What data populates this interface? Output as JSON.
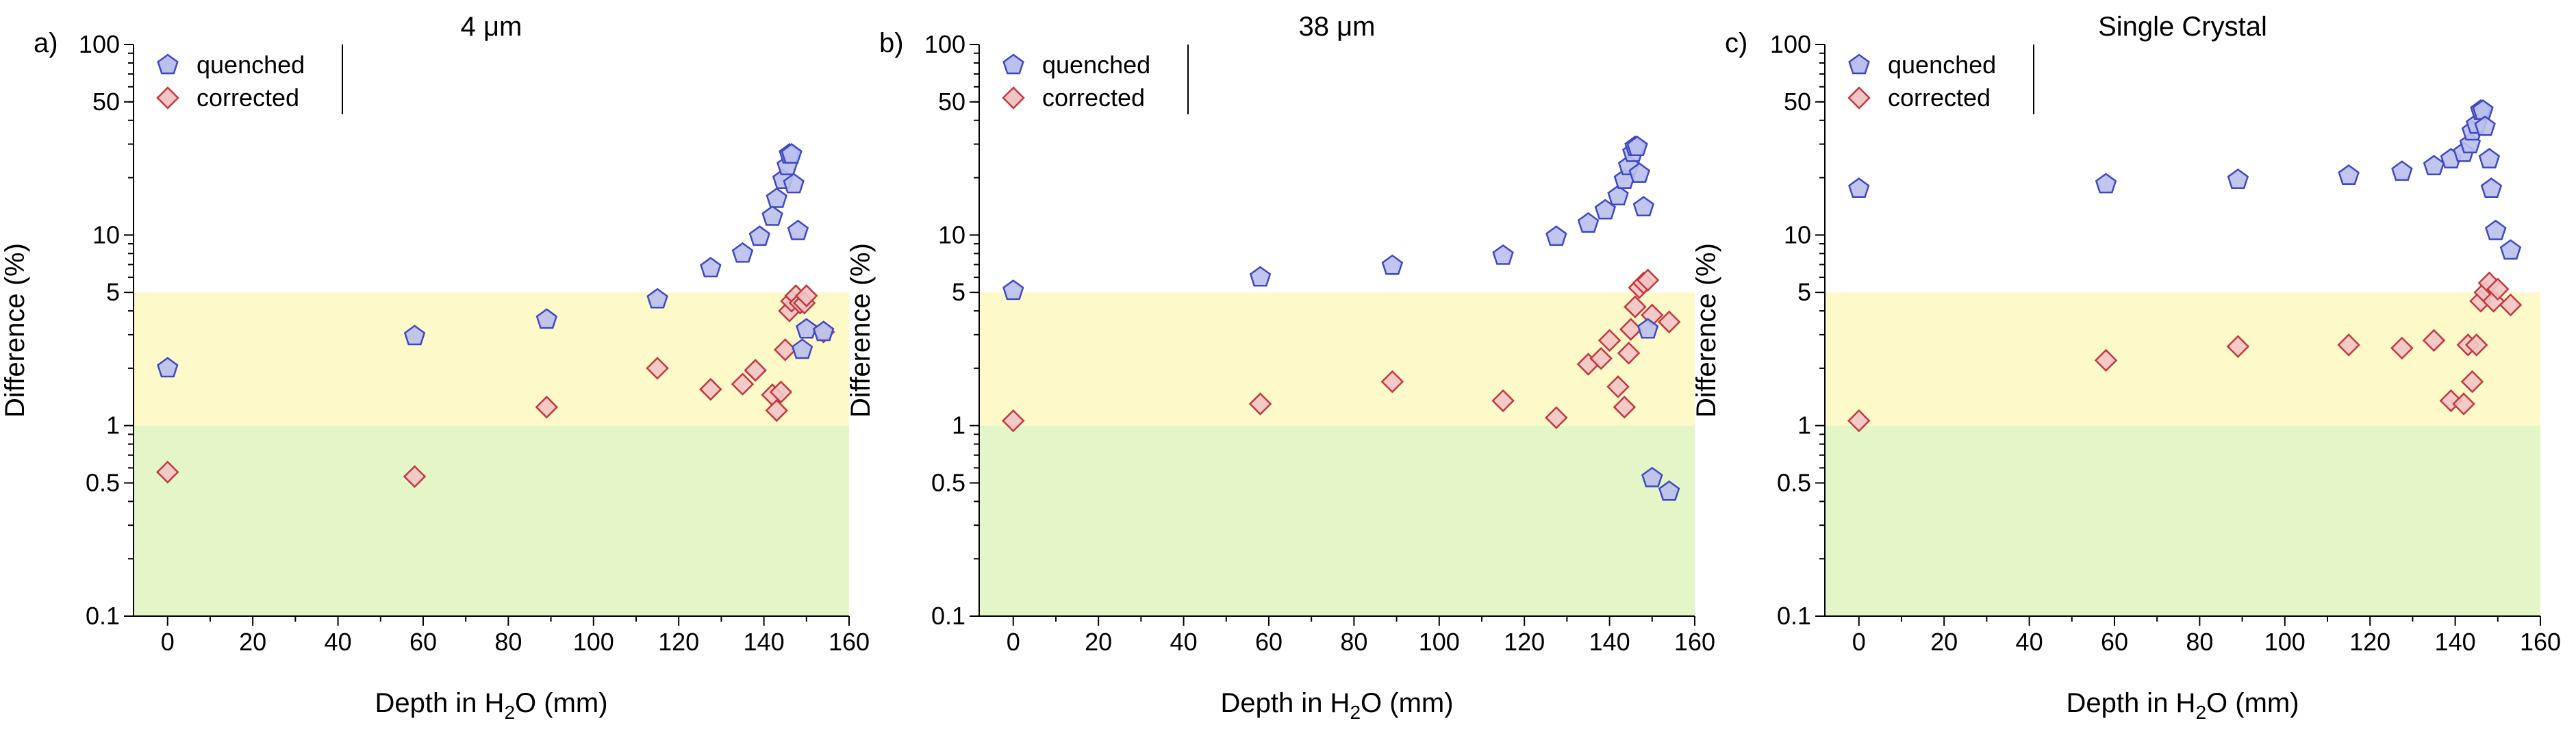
{
  "figure": {
    "panel_labels": [
      "a)",
      "b)",
      "c)"
    ],
    "titles": [
      "4 μm",
      "38 μm",
      "Single Crystal"
    ]
  },
  "colors": {
    "quenched_fill": "#b9c0ec",
    "quenched_stroke": "#3f48c2",
    "corrected_fill": "#f2c4c4",
    "corrected_stroke": "#c0393f",
    "band_yellow": "#fdf9c9",
    "band_green": "#e4f6c7"
  },
  "chart_data": [
    {
      "type": "scatter",
      "panel": "a)",
      "title": "4 μm",
      "xlabel": "Depth in H₂O (mm)",
      "ylabel": "Difference (%)",
      "xlim": [
        -8,
        160
      ],
      "ylim": [
        0.1,
        100
      ],
      "yscale": "log",
      "xticks": [
        "0",
        "20",
        "40",
        "60",
        "80",
        "100",
        "120",
        "140",
        "160"
      ],
      "yticks": [
        "0.1",
        "0.5",
        "1",
        "5",
        "10",
        "50",
        "100"
      ],
      "bands": [
        {
          "from": 0.1,
          "to": 1,
          "color": "green"
        },
        {
          "from": 1,
          "to": 5,
          "color": "yellow"
        }
      ],
      "legend": {
        "position": "top-left",
        "entries": [
          "quenched",
          "corrected"
        ]
      },
      "series": [
        {
          "name": "quenched",
          "marker": "pentagon",
          "x": [
            0,
            58,
            89,
            115,
            127.5,
            135,
            139,
            142,
            143,
            144.5,
            145.5,
            146,
            146.5,
            147,
            148,
            149,
            150,
            154
          ],
          "y": [
            2.0,
            2.95,
            3.6,
            4.6,
            6.7,
            8.0,
            9.8,
            12.5,
            15.5,
            19.5,
            23,
            26.5,
            26.5,
            18.5,
            10.5,
            2.5,
            3.2,
            3.1
          ]
        },
        {
          "name": "corrected",
          "marker": "diamond",
          "x": [
            0,
            58,
            89,
            115,
            127.5,
            135,
            138,
            142,
            143,
            144,
            145,
            146,
            146.5,
            147.5,
            148.5,
            149.5,
            150,
            154
          ],
          "y": [
            0.57,
            0.54,
            1.25,
            2.0,
            1.55,
            1.65,
            1.95,
            1.45,
            1.2,
            1.5,
            2.5,
            4.0,
            4.5,
            4.8,
            4.4,
            4.4,
            4.8,
            3.1
          ]
        }
      ]
    },
    {
      "type": "scatter",
      "panel": "b)",
      "title": "38 μm",
      "xlabel": "Depth in H₂O (mm)",
      "ylabel": "Difference (%)",
      "xlim": [
        -8,
        160
      ],
      "ylim": [
        0.1,
        100
      ],
      "yscale": "log",
      "xticks": [
        "0",
        "20",
        "40",
        "60",
        "80",
        "100",
        "120",
        "140",
        "160"
      ],
      "yticks": [
        "0.1",
        "0.5",
        "1",
        "5",
        "10",
        "50",
        "100"
      ],
      "bands": [
        {
          "from": 0.1,
          "to": 1,
          "color": "green"
        },
        {
          "from": 1,
          "to": 5,
          "color": "yellow"
        }
      ],
      "legend": {
        "position": "top-left",
        "entries": [
          "quenched",
          "corrected"
        ]
      },
      "series": [
        {
          "name": "quenched",
          "marker": "pentagon",
          "x": [
            0,
            58,
            89,
            115,
            127.5,
            135,
            139,
            142,
            143.5,
            144.5,
            145.5,
            146,
            146.5,
            147,
            148,
            149,
            150,
            154
          ],
          "y": [
            5.1,
            6.0,
            6.9,
            7.8,
            9.8,
            11.5,
            13.5,
            16,
            19.5,
            23,
            27,
            29,
            29,
            21,
            14,
            3.2,
            0.53,
            0.45
          ]
        },
        {
          "name": "corrected",
          "marker": "diamond",
          "x": [
            0,
            58,
            89,
            115,
            127.5,
            135,
            138,
            140,
            142,
            143.5,
            144.5,
            145,
            146,
            147,
            148,
            149,
            150,
            154
          ],
          "y": [
            1.06,
            1.3,
            1.7,
            1.35,
            1.1,
            2.1,
            2.25,
            2.8,
            1.6,
            1.25,
            2.4,
            3.2,
            4.2,
            5.3,
            5.6,
            5.8,
            3.8,
            3.5
          ]
        }
      ]
    },
    {
      "type": "scatter",
      "panel": "c)",
      "title": "Single Crystal",
      "xlabel": "Depth in H₂O (mm)",
      "ylabel": "Difference (%)",
      "xlim": [
        -8,
        160
      ],
      "ylim": [
        0.1,
        100
      ],
      "yscale": "log",
      "xticks": [
        "0",
        "20",
        "40",
        "60",
        "80",
        "100",
        "120",
        "140",
        "160"
      ],
      "yticks": [
        "0.1",
        "0.5",
        "1",
        "5",
        "10",
        "50",
        "100"
      ],
      "bands": [
        {
          "from": 0.1,
          "to": 1,
          "color": "green"
        },
        {
          "from": 1,
          "to": 5,
          "color": "yellow"
        }
      ],
      "legend": {
        "position": "top-left",
        "entries": [
          "quenched",
          "corrected"
        ]
      },
      "series": [
        {
          "name": "quenched",
          "marker": "pentagon",
          "x": [
            0,
            58,
            89,
            115,
            127.5,
            135,
            139,
            142,
            143.5,
            144,
            145,
            146,
            146.5,
            147,
            148,
            148.5,
            149.5,
            153
          ],
          "y": [
            17.5,
            18.5,
            19.5,
            20.5,
            21.5,
            23,
            25,
            27,
            30,
            35,
            38,
            45,
            45,
            37,
            25,
            17.5,
            10.5,
            8.3
          ]
        },
        {
          "name": "corrected",
          "marker": "diamond",
          "x": [
            0,
            58,
            89,
            115,
            127.5,
            135,
            139,
            142,
            143,
            144,
            145,
            146,
            147,
            148,
            149,
            150,
            153
          ],
          "y": [
            1.06,
            2.2,
            2.6,
            2.65,
            2.55,
            2.8,
            1.35,
            1.3,
            2.65,
            1.7,
            2.65,
            4.5,
            5.0,
            5.6,
            4.5,
            5.2,
            4.3
          ]
        }
      ]
    }
  ]
}
